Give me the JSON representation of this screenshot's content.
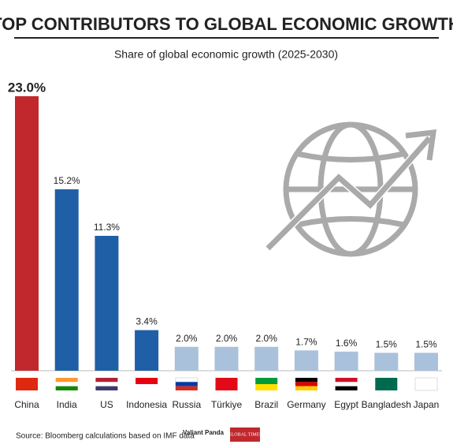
{
  "chart_data": {
    "type": "bar",
    "title": "TOP CONTRIBUTORS TO GLOBAL ECONOMIC GROWTH",
    "subtitle": "Share of global economic growth (2025-2030)",
    "categories": [
      "China",
      "India",
      "US",
      "Indonesia",
      "Russia",
      "Türkiye",
      "Brazil",
      "Germany",
      "Egypt",
      "Bangladesh",
      "Japan"
    ],
    "values": [
      23.0,
      15.2,
      11.3,
      3.4,
      2.0,
      2.0,
      2.0,
      1.7,
      1.6,
      1.5,
      1.5
    ],
    "value_labels": [
      "23.0%",
      "15.2%",
      "11.3%",
      "3.4%",
      "2.0%",
      "2.0%",
      "2.0%",
      "1.7%",
      "1.6%",
      "1.5%",
      "1.5%"
    ],
    "colors": [
      "#c0282d",
      "#1f5fa6",
      "#1f5fa6",
      "#1f5fa6",
      "#a9c1db",
      "#a9c1db",
      "#a9c1db",
      "#a9c1db",
      "#a9c1db",
      "#a9c1db",
      "#a9c1db"
    ],
    "source": "Source: Bloomberg calculations based on IMF data",
    "logos": [
      "Valiant Panda",
      "GLOBAL TIMES"
    ]
  }
}
